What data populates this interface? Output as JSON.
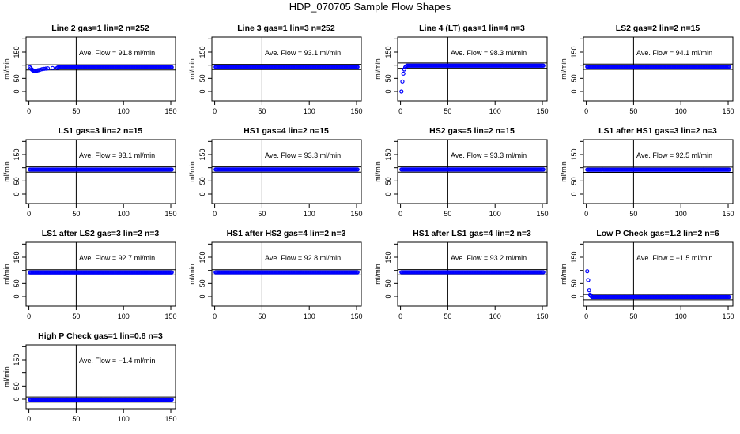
{
  "title": "HDP_070705  Sample Flow Shapes",
  "colors": {
    "points": "#0000ff",
    "axes": "#000000"
  },
  "chart_data": [
    {
      "type": "scatter",
      "title": "Line 2 gas=1 lin=2 n=252",
      "annotation": "Ave. Flow =  91.8  ml/min",
      "avg": 91.8,
      "transient": [
        [
          1,
          92
        ],
        [
          2,
          88
        ],
        [
          3,
          84
        ],
        [
          4,
          81
        ],
        [
          5,
          79
        ],
        [
          6,
          78
        ],
        [
          7,
          78
        ],
        [
          8,
          79
        ],
        [
          9,
          80
        ],
        [
          10,
          81
        ],
        [
          12,
          83
        ],
        [
          14,
          85
        ],
        [
          16,
          86
        ],
        [
          18,
          87
        ],
        [
          20,
          88
        ],
        [
          25,
          89
        ],
        [
          30,
          90
        ]
      ],
      "steady": {
        "from": 31,
        "to": 151,
        "value": 91.8
      }
    },
    {
      "type": "scatter",
      "title": "Line 3 gas=1 lin=3 n=252",
      "annotation": "Ave. Flow =  93.1  ml/min",
      "avg": 93.1,
      "transient": [],
      "steady": {
        "from": 1,
        "to": 151,
        "value": 93.1
      }
    },
    {
      "type": "scatter",
      "title": "Line 4 (LT) gas=1 lin=4 n=3",
      "annotation": "Ave. Flow =  98.3  ml/min",
      "avg": 98.3,
      "transient": [
        [
          1,
          0
        ],
        [
          2,
          38
        ],
        [
          3,
          68
        ],
        [
          4,
          84
        ],
        [
          5,
          92
        ],
        [
          6,
          96
        ]
      ],
      "steady": {
        "from": 7,
        "to": 151,
        "value": 98.3
      }
    },
    {
      "type": "scatter",
      "title": "LS2 gas=2 lin=2 n=15",
      "annotation": "Ave. Flow =  94.1  ml/min",
      "avg": 94.1,
      "transient": [],
      "steady": {
        "from": 1,
        "to": 151,
        "value": 94.1
      }
    },
    {
      "type": "scatter",
      "title": "LS1 gas=3 lin=2 n=15",
      "annotation": "Ave. Flow =  93.1  ml/min",
      "avg": 93.1,
      "transient": [],
      "steady": {
        "from": 1,
        "to": 151,
        "value": 93.1
      }
    },
    {
      "type": "scatter",
      "title": "HS1 gas=4 lin=2 n=15",
      "annotation": "Ave. Flow =  93.3  ml/min",
      "avg": 93.3,
      "transient": [],
      "steady": {
        "from": 1,
        "to": 151,
        "value": 93.3
      }
    },
    {
      "type": "scatter",
      "title": "HS2 gas=5 lin=2 n=15",
      "annotation": "Ave. Flow =  93.3  ml/min",
      "avg": 93.3,
      "transient": [],
      "steady": {
        "from": 1,
        "to": 151,
        "value": 93.3
      }
    },
    {
      "type": "scatter",
      "title": "LS1 after HS1 gas=3 lin=2 n=3",
      "annotation": "Ave. Flow =  92.5  ml/min",
      "avg": 92.5,
      "transient": [],
      "steady": {
        "from": 1,
        "to": 151,
        "value": 92.5
      }
    },
    {
      "type": "scatter",
      "title": "LS1 after LS2 gas=3 lin=2 n=3",
      "annotation": "Ave. Flow =  92.7  ml/min",
      "avg": 92.7,
      "transient": [],
      "steady": {
        "from": 1,
        "to": 151,
        "value": 92.7
      }
    },
    {
      "type": "scatter",
      "title": "HS1 after HS2 gas=4 lin=2 n=3",
      "annotation": "Ave. Flow =  92.8  ml/min",
      "avg": 92.8,
      "transient": [],
      "steady": {
        "from": 1,
        "to": 151,
        "value": 92.8
      }
    },
    {
      "type": "scatter",
      "title": "HS1 after LS1 gas=4 lin=2 n=3",
      "annotation": "Ave. Flow =  93.2  ml/min",
      "avg": 93.2,
      "transient": [],
      "steady": {
        "from": 1,
        "to": 151,
        "value": 93.2
      }
    },
    {
      "type": "scatter",
      "title": "Low P Check gas=1.2 lin=2 n=6",
      "annotation": "Ave. Flow =  −1.5  ml/min",
      "avg": -1.5,
      "transient": [
        [
          1,
          97
        ],
        [
          2,
          63
        ],
        [
          3,
          25
        ],
        [
          4,
          8
        ],
        [
          5,
          2
        ]
      ],
      "steady": {
        "from": 6,
        "to": 151,
        "value": -1.5
      }
    },
    {
      "type": "scatter",
      "title": "High P Check gas=1 lin=0.8 n=3",
      "annotation": "Ave. Flow =  −1.4  ml/min",
      "avg": -1.4,
      "transient": [],
      "steady": {
        "from": 1,
        "to": 151,
        "value": -1.4
      }
    }
  ],
  "axes": {
    "ylabel": "ml/min",
    "xlim": [
      -3,
      155
    ],
    "ylim": [
      -36,
      207
    ],
    "xticks": [
      0,
      50,
      100,
      150
    ],
    "yticks": [
      0,
      50,
      100,
      150,
      200
    ],
    "ytick_labels": [
      "0",
      "50",
      "",
      "150",
      ""
    ],
    "vline_x": 50,
    "band_halfwidth": 10
  }
}
